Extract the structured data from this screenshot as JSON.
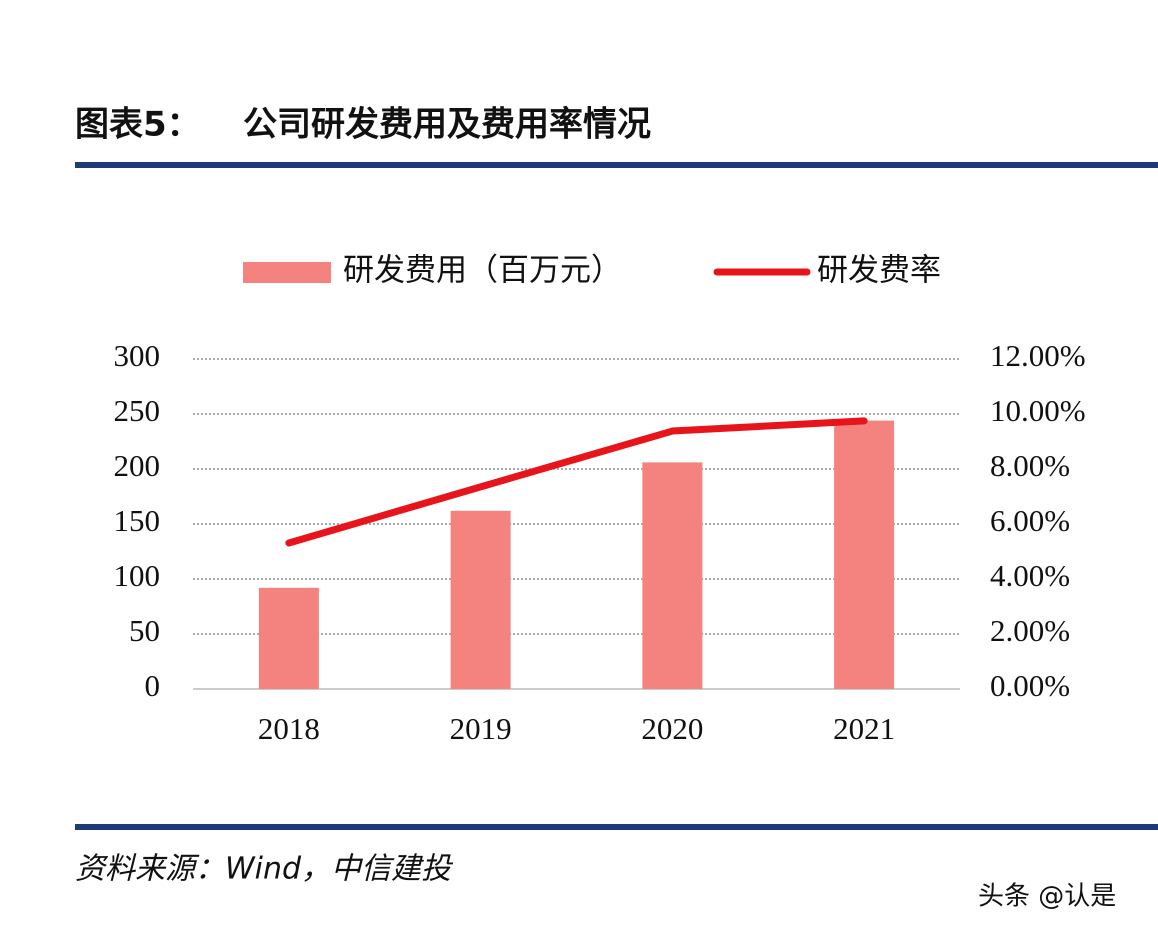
{
  "chart_data": {
    "type": "bar_line",
    "figure_label": "图表5：",
    "title": "公司研发费用及费用率情况",
    "categories": [
      "2018",
      "2019",
      "2020",
      "2021"
    ],
    "series": [
      {
        "name": "研发费用（百万元）",
        "type": "bar",
        "color": "#f4827e",
        "axis": "y",
        "values": [
          92,
          162,
          206,
          244
        ]
      },
      {
        "name": "研发费率",
        "type": "line",
        "color": "#e8141b",
        "axis": "y2",
        "values": [
          5.31,
          7.35,
          9.38,
          9.75
        ]
      }
    ],
    "ylim": [
      0,
      300
    ],
    "yticks": [
      0,
      50,
      100,
      150,
      200,
      250,
      300
    ],
    "y2lim": [
      0,
      12
    ],
    "y2ticks": [
      {
        "value": 0,
        "label": "0.00%"
      },
      {
        "value": 2,
        "label": "2.00%"
      },
      {
        "value": 4,
        "label": "4.00%"
      },
      {
        "value": 6,
        "label": "6.00%"
      },
      {
        "value": 8,
        "label": "8.00%"
      },
      {
        "value": 10,
        "label": "10.00%"
      },
      {
        "value": 12,
        "label": "12.00%"
      }
    ],
    "grid": true,
    "legend_position": "top",
    "source": "资料来源：Wind，中信建投",
    "watermark": "头条 @认是"
  }
}
